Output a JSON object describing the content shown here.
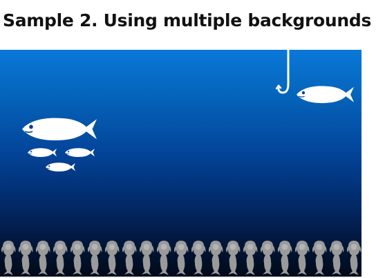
{
  "heading": {
    "title": "Sample 2. Using multiple backgrounds"
  },
  "scene": {
    "description_icons": [
      "fish-icon",
      "fishhook-icon",
      "mermaid-icon"
    ],
    "gradient_top": "#0a78d8",
    "gradient_bottom": "#010a1a",
    "fish_color": "#ffffff",
    "mermaid_color": "#9a9a9a",
    "mermaid_count": 21
  }
}
